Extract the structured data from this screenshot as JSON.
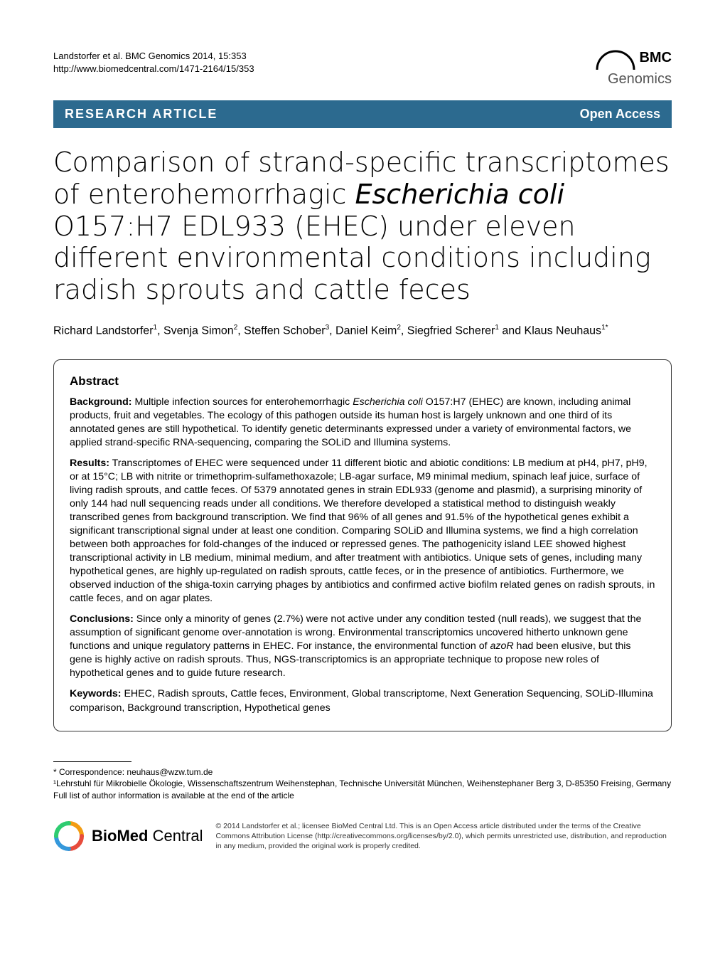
{
  "header": {
    "citation_line1": "Landstorfer et al. BMC Genomics 2014, 15:353",
    "citation_line2": "http://www.biomedcentral.com/1471-2164/15/353",
    "logo_prefix": "BMC",
    "logo_brand": "Genomics"
  },
  "banner": {
    "left": "RESEARCH ARTICLE",
    "right": "Open Access",
    "bg_color": "#2c6a8f"
  },
  "title": {
    "part1": "Comparison of strand-specific transcriptomes of enterohemorrhagic ",
    "italic": "Escherichia coli",
    "part2": " O157:H7 EDL933 (EHEC) under eleven different environmental conditions including radish sprouts and cattle feces"
  },
  "authors_html": "Richard Landstorfer<sup>1</sup>, Svenja Simon<sup>2</sup>, Steffen Schober<sup>3</sup>, Daniel Keim<sup>2</sup>, Siegfried Scherer<sup>1</sup> and Klaus Neuhaus<sup>1*</sup>",
  "abstract": {
    "heading": "Abstract",
    "background_label": "Background:",
    "background_text": " Multiple infection sources for enterohemorrhagic Escherichia coli O157:H7 (EHEC) are known, including animal products, fruit and vegetables. The ecology of this pathogen outside its human host is largely unknown and one third of its annotated genes are still hypothetical. To identify genetic determinants expressed under a variety of environmental factors, we applied strand-specific RNA-sequencing, comparing the SOLiD and Illumina systems.",
    "results_label": "Results:",
    "results_text": " Transcriptomes of EHEC were sequenced under 11 different biotic and abiotic conditions: LB medium at pH4, pH7, pH9, or at 15°C; LB with nitrite or trimethoprim-sulfamethoxazole; LB-agar surface, M9 minimal medium, spinach leaf juice, surface of living radish sprouts, and cattle feces. Of 5379 annotated genes in strain EDL933 (genome and plasmid), a surprising minority of only 144 had null sequencing reads under all conditions. We therefore developed a statistical method to distinguish weakly transcribed genes from background transcription. We find that 96% of all genes and 91.5% of the hypothetical genes exhibit a significant transcriptional signal under at least one condition. Comparing SOLiD and Illumina systems, we find a high correlation between both approaches for fold-changes of the induced or repressed genes. The pathogenicity island LEE showed highest transcriptional activity in LB medium, minimal medium, and after treatment with antibiotics. Unique sets of genes, including many hypothetical genes, are highly up-regulated on radish sprouts, cattle feces, or in the presence of antibiotics. Furthermore, we observed induction of the shiga-toxin carrying phages by antibiotics and confirmed active biofilm related genes on radish sprouts, in cattle feces, and on agar plates.",
    "conclusions_label": "Conclusions:",
    "conclusions_text": " Since only a minority of genes (2.7%) were not active under any condition tested (null reads), we suggest that the assumption of significant genome over-annotation is wrong. Environmental transcriptomics uncovered hitherto unknown gene functions and unique regulatory patterns in EHEC. For instance, the environmental function of azoR had been elusive, but this gene is highly active on radish sprouts. Thus, NGS-transcriptomics is an appropriate technique to propose new roles of hypothetical genes and to guide future research.",
    "keywords_label": "Keywords:",
    "keywords_text": " EHEC, Radish sprouts, Cattle feces, Environment, Global transcriptome, Next Generation Sequencing, SOLiD-Illumina comparison, Background transcription, Hypothetical genes"
  },
  "footer": {
    "correspondence": "* Correspondence: neuhaus@wzw.tum.de",
    "affil1": "¹Lehrstuhl für Mikrobielle Ökologie, Wissenschaftszentrum Weihenstephan, Technische Universität München, Weihenstephaner Berg 3, D-85350 Freising, Germany",
    "affil_more": "Full list of author information is available at the end of the article"
  },
  "bottom": {
    "logo_text": "BioMed Central",
    "license": "© 2014 Landstorfer et al.; licensee BioMed Central Ltd. This is an Open Access article distributed under the terms of the Creative Commons Attribution License (http://creativecommons.org/licenses/by/2.0), which permits unrestricted use, distribution, and reproduction in any medium, provided the original work is properly credited.",
    "ring_colors": [
      "#f39c12",
      "#e74c3c",
      "#3498db",
      "#2ecc71"
    ]
  }
}
